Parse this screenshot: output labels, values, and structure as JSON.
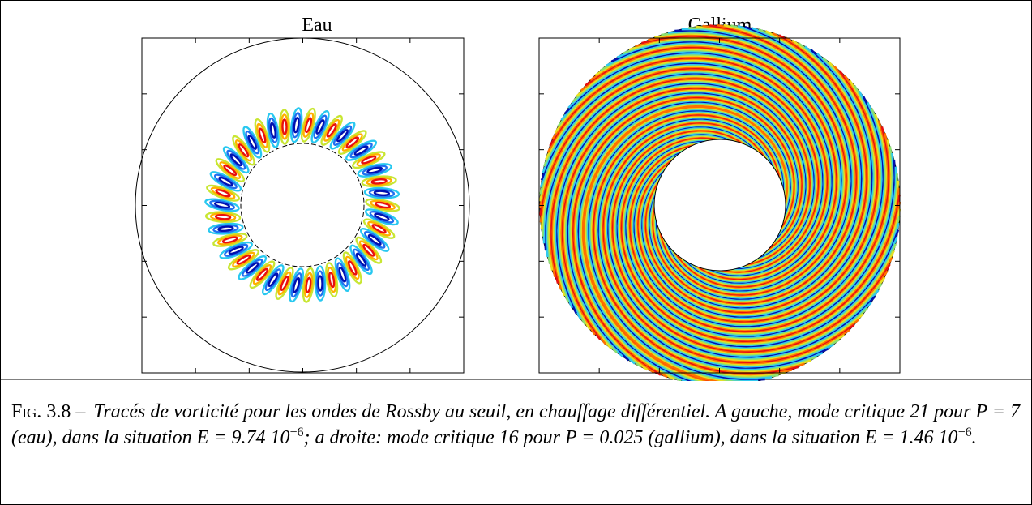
{
  "panels": [
    {
      "title": "Eau"
    },
    {
      "title": "Gallium"
    }
  ],
  "caption": {
    "label": "Fig. 3.8 –",
    "part1": "Tracés de vorticité pour les ondes de Rossby au seuil, en chauffage différentiel. A gauche, mode critique 21 pour P = 7 (eau), dans la situation E = 9.74 10",
    "exp1": "−6",
    "part2": "; a droite: mode critique 16 pour P = 0.025 (gallium), dans la situation E = 1.46 10",
    "exp2": "−6",
    "part3": "."
  }
}
